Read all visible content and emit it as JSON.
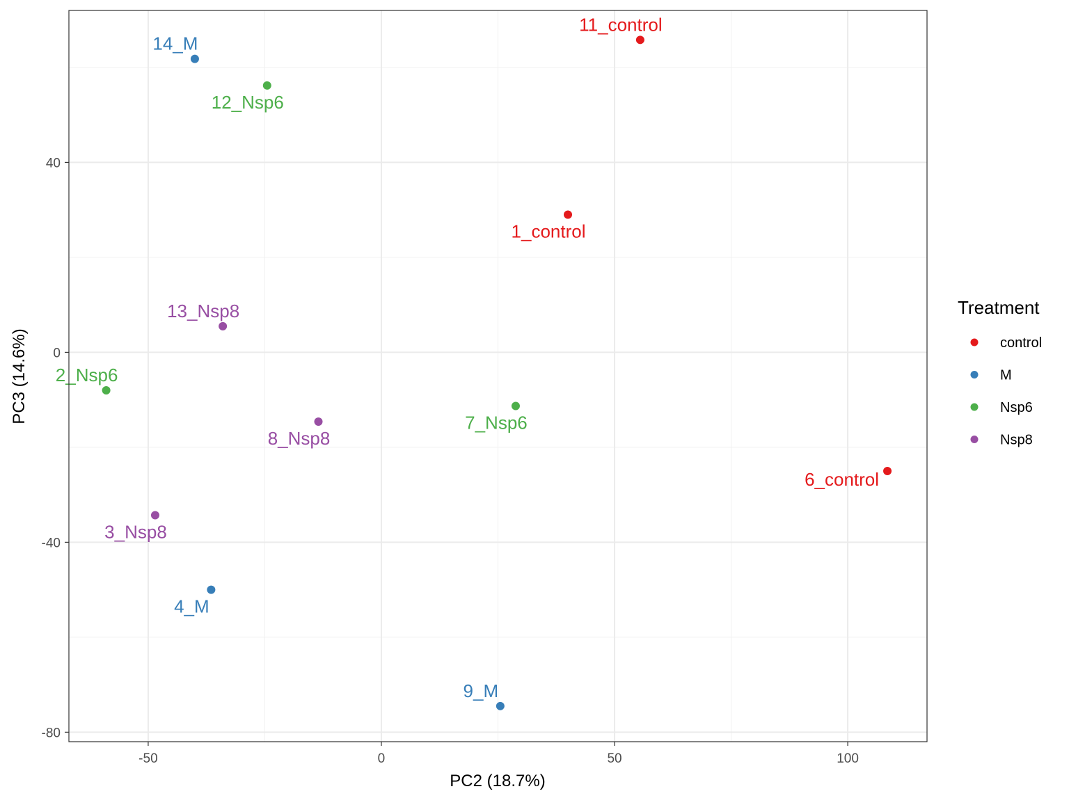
{
  "chart_data": {
    "type": "scatter",
    "xlabel": "PC2 (18.7%)",
    "ylabel": "PC3 (14.6%)",
    "xlim": [
      -67,
      117
    ],
    "ylim": [
      -82,
      72
    ],
    "x_ticks": [
      -50,
      0,
      50,
      100
    ],
    "x_tick_labels": [
      "-50",
      "0",
      "50",
      "100"
    ],
    "y_ticks": [
      40,
      0,
      -40,
      -80
    ],
    "y_tick_labels": [
      "40",
      "0",
      "-40",
      "-80"
    ],
    "x_minor_grid": [
      -25,
      25,
      75
    ],
    "y_minor_grid": [
      60,
      20,
      -20,
      -60
    ],
    "grid": true,
    "legend": {
      "title": "Treatment",
      "placement": "right",
      "entries": [
        {
          "label": "control",
          "color": "#E41A1C"
        },
        {
          "label": "M",
          "color": "#377EB8"
        },
        {
          "label": "Nsp6",
          "color": "#4DAF4A"
        },
        {
          "label": "Nsp8",
          "color": "#984EA3"
        }
      ]
    },
    "points": [
      {
        "label": "11_control",
        "group": "control",
        "x": 55.5,
        "y": 65.8,
        "label_pos": "above"
      },
      {
        "label": "1_control",
        "group": "control",
        "x": 40.0,
        "y": 29.0,
        "label_pos": "below"
      },
      {
        "label": "6_control",
        "group": "control",
        "x": 108.5,
        "y": -25.0,
        "label_pos": "left"
      },
      {
        "label": "14_M",
        "group": "M",
        "x": -40.0,
        "y": 61.8,
        "label_pos": "above"
      },
      {
        "label": "4_M",
        "group": "M",
        "x": -36.5,
        "y": -50.0,
        "label_pos": "below"
      },
      {
        "label": "9_M",
        "group": "M",
        "x": 25.5,
        "y": -74.5,
        "label_pos": "above"
      },
      {
        "label": "12_Nsp6",
        "group": "Nsp6",
        "x": -24.5,
        "y": 56.2,
        "label_pos": "below"
      },
      {
        "label": "2_Nsp6",
        "group": "Nsp6",
        "x": -59.0,
        "y": -8.0,
        "label_pos": "above"
      },
      {
        "label": "7_Nsp6",
        "group": "Nsp6",
        "x": 28.8,
        "y": -11.3,
        "label_pos": "below"
      },
      {
        "label": "13_Nsp8",
        "group": "Nsp8",
        "x": -34.0,
        "y": 5.5,
        "label_pos": "above"
      },
      {
        "label": "8_Nsp8",
        "group": "Nsp8",
        "x": -13.5,
        "y": -14.6,
        "label_pos": "below"
      },
      {
        "label": "3_Nsp8",
        "group": "Nsp8",
        "x": -48.5,
        "y": -34.3,
        "label_pos": "below"
      }
    ]
  }
}
